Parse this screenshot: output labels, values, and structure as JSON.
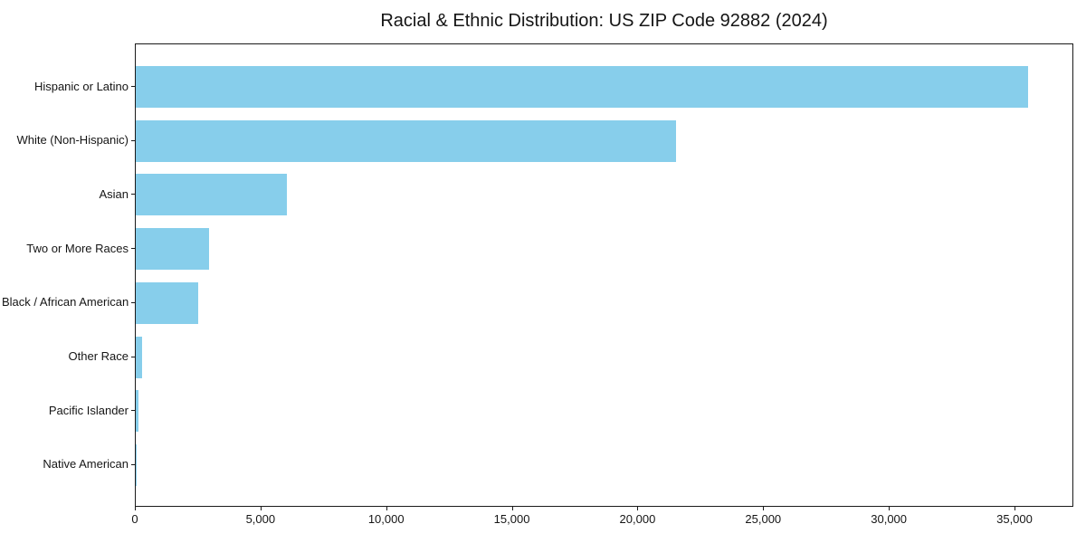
{
  "chart_data": {
    "type": "bar",
    "orientation": "horizontal",
    "title": "Racial & Ethnic Distribution: US ZIP Code 92882 (2024)",
    "categories": [
      "Hispanic or Latino",
      "White (Non-Hispanic)",
      "Asian",
      "Two or More Races",
      "Black / African American",
      "Other Race",
      "Pacific Islander",
      "Native American"
    ],
    "values": [
      35500,
      21500,
      6000,
      2900,
      2500,
      250,
      100,
      40
    ],
    "xlabel": "",
    "ylabel": "",
    "xlim": [
      0,
      37340
    ],
    "x_ticks": [
      0,
      5000,
      10000,
      15000,
      20000,
      25000,
      30000,
      35000
    ],
    "x_tick_labels": [
      "0",
      "5,000",
      "10,000",
      "15,000",
      "20,000",
      "25,000",
      "30,000",
      "35,000"
    ],
    "bar_color": "#87CEEB",
    "text_color": "#151515",
    "grid": false,
    "legend": null
  }
}
